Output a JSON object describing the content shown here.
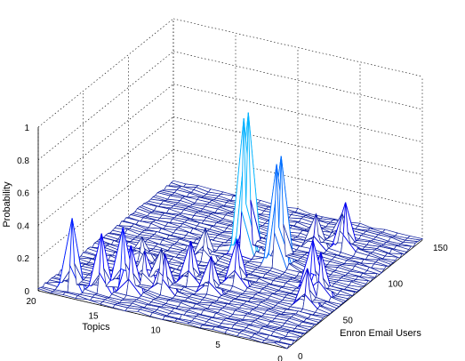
{
  "chart_data": {
    "type": "surface",
    "title": "",
    "xlabel": "Topics",
    "ylabel": "Enron Email Users",
    "zlabel": "Probability",
    "x_ticks": [
      "0",
      "5",
      "10",
      "15",
      "20"
    ],
    "y_ticks": [
      "0",
      "50",
      "100",
      "150"
    ],
    "z_ticks": [
      "0",
      "0.2",
      "0.4",
      "0.6",
      "0.8",
      "1"
    ],
    "xlim": [
      0,
      20
    ],
    "ylim": [
      0,
      150
    ],
    "zlim": [
      0,
      1
    ],
    "grid": true,
    "colormap": "jet",
    "peaks": [
      {
        "topic": 10,
        "user": 95,
        "value": 0.84
      },
      {
        "topic": 10,
        "user": 90,
        "value": 0.82
      },
      {
        "topic": 7,
        "user": 90,
        "value": 0.64
      },
      {
        "topic": 7,
        "user": 85,
        "value": 0.62
      },
      {
        "topic": 18,
        "user": 10,
        "value": 0.42
      },
      {
        "topic": 16,
        "user": 15,
        "value": 0.35
      },
      {
        "topic": 15,
        "user": 25,
        "value": 0.36
      },
      {
        "topic": 14,
        "user": 20,
        "value": 0.28
      },
      {
        "topic": 14,
        "user": 35,
        "value": 0.18
      },
      {
        "topic": 13,
        "user": 40,
        "value": 0.2
      },
      {
        "topic": 12,
        "user": 30,
        "value": 0.22
      },
      {
        "topic": 11,
        "user": 45,
        "value": 0.25
      },
      {
        "topic": 6,
        "user": 115,
        "value": 0.2
      },
      {
        "topic": 5,
        "user": 130,
        "value": 0.15
      },
      {
        "topic": 4,
        "user": 120,
        "value": 0.28
      },
      {
        "topic": 3,
        "user": 70,
        "value": 0.3
      },
      {
        "topic": 2,
        "user": 65,
        "value": 0.25
      },
      {
        "topic": 2,
        "user": 50,
        "value": 0.22
      },
      {
        "topic": 8,
        "user": 55,
        "value": 0.28
      },
      {
        "topic": 9,
        "user": 40,
        "value": 0.22
      },
      {
        "topic": 12,
        "user": 75,
        "value": 0.18
      },
      {
        "topic": 16,
        "user": 60,
        "value": 0.12
      }
    ]
  }
}
